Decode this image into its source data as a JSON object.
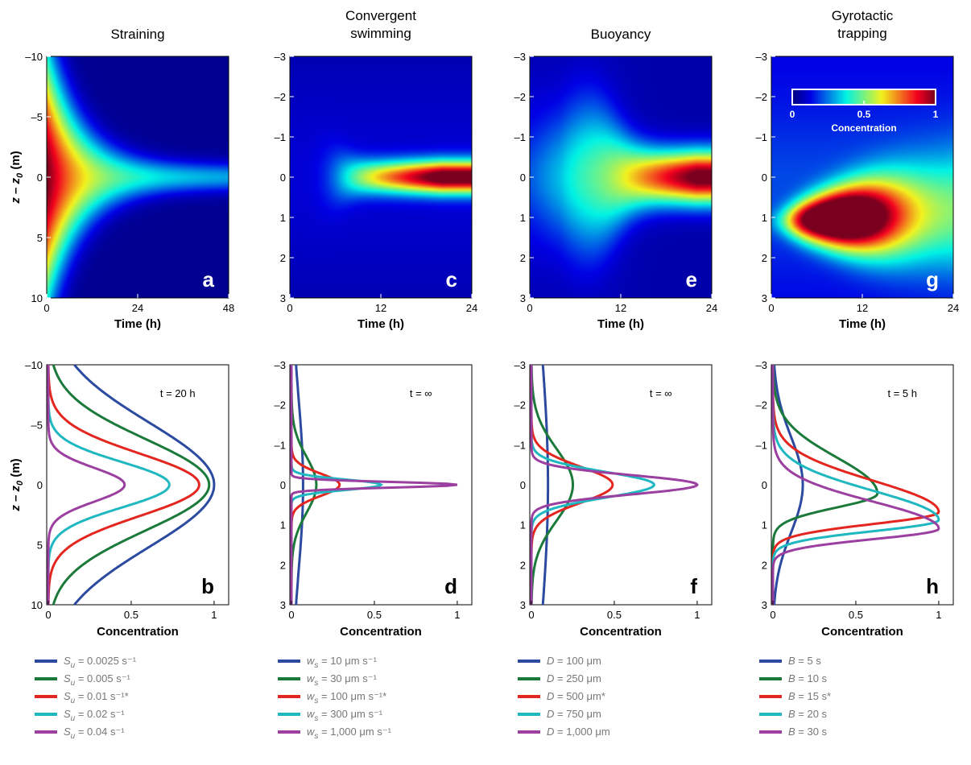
{
  "columns": [
    {
      "key": "straining",
      "title_lines": [
        "Straining"
      ],
      "heatmap_label": "a",
      "profile_label": "b",
      "time_max": 48,
      "time_ticks": [
        "0",
        "24",
        "48"
      ],
      "depth_range": [
        -10,
        10
      ],
      "depth_ticks": [
        "–10",
        "–5",
        "0",
        "5",
        "10"
      ],
      "annotation": "t = 20 h",
      "legend_param": "S",
      "legend_sub": "u",
      "legend_entries": [
        "S_u = 0.0025 s⁻¹",
        "S_u = 0.005 s⁻¹",
        "S_u = 0.01 s⁻¹*",
        "S_u = 0.02 s⁻¹",
        "S_u = 0.04 s⁻¹"
      ],
      "legend_values": [
        " = 0.0025 s⁻¹",
        " = 0.005 s⁻¹",
        " = 0.01 s⁻¹*",
        " = 0.02 s⁻¹",
        " = 0.04 s⁻¹"
      ]
    },
    {
      "key": "convergent",
      "title_lines": [
        "Convergent",
        "swimming"
      ],
      "heatmap_label": "c",
      "profile_label": "d",
      "time_max": 24,
      "time_ticks": [
        "0",
        "12",
        "24"
      ],
      "depth_range": [
        -3,
        3
      ],
      "depth_ticks": [
        "–3",
        "–2",
        "–1",
        "0",
        "1",
        "2",
        "3"
      ],
      "annotation": "t = ∞",
      "legend_param": "w",
      "legend_sub": "s",
      "legend_entries": [
        "w_s = 10 μm s⁻¹",
        "w_s = 30 μm s⁻¹",
        "w_s = 100 μm s⁻¹*",
        "w_s = 300 μm s⁻¹",
        "w_s = 1,000 μm s⁻¹"
      ],
      "legend_values": [
        " = 10 μm s⁻¹",
        " = 30 μm s⁻¹",
        " = 100 μm s⁻¹*",
        " = 300 μm s⁻¹",
        " = 1,000 μm s⁻¹"
      ]
    },
    {
      "key": "buoyancy",
      "title_lines": [
        "Buoyancy"
      ],
      "heatmap_label": "e",
      "profile_label": "f",
      "time_max": 24,
      "time_ticks": [
        "0",
        "12",
        "24"
      ],
      "depth_range": [
        -3,
        3
      ],
      "depth_ticks": [
        "–3",
        "–2",
        "–1",
        "0",
        "1",
        "2",
        "3"
      ],
      "annotation": "t = ∞",
      "legend_param": "D",
      "legend_sub": "",
      "legend_entries": [
        "D = 100 μm",
        "D = 250 μm",
        "D = 500 μm*",
        "D = 750 μm",
        "D = 1,000 μm"
      ],
      "legend_values": [
        " = 100 μm",
        " = 250 μm",
        " = 500 μm*",
        " = 750 μm",
        " = 1,000 μm"
      ]
    },
    {
      "key": "gyrotactic",
      "title_lines": [
        "Gyrotactic",
        "trapping"
      ],
      "heatmap_label": "g",
      "profile_label": "h",
      "time_max": 24,
      "time_ticks": [
        "0",
        "12",
        "24"
      ],
      "depth_range": [
        -3,
        3
      ],
      "depth_ticks": [
        "–3",
        "–2",
        "–1",
        "0",
        "1",
        "2",
        "3"
      ],
      "annotation": "t = 5 h",
      "legend_param": "B",
      "legend_sub": "",
      "legend_entries": [
        "B = 5 s",
        "B = 10 s",
        "B = 15 s*",
        "B = 20 s",
        "B = 30 s"
      ],
      "legend_values": [
        " = 5 s",
        " = 10 s",
        " = 15 s*",
        " = 20 s",
        " = 30 s"
      ]
    }
  ],
  "axes": {
    "y_label": "z – z0 (m)",
    "y_label_main": "z – z",
    "y_label_sub": "0",
    "y_label_unit": " (m)",
    "x_label_top": "Time (h)",
    "x_label_bottom": "Concentration",
    "conc_ticks": [
      "0",
      "0.5",
      "1"
    ]
  },
  "colorbar": {
    "label": "Concentration",
    "ticks": [
      "0",
      "0.5",
      "1"
    ]
  },
  "series_colors": [
    "#2b4aa0",
    "#1b7a3a",
    "#e3261f",
    "#1fb8c0",
    "#9b3fa0"
  ],
  "chart_data": [
    {
      "panel": "a",
      "type": "heatmap",
      "title": "Straining",
      "xlabel": "Time (h)",
      "ylabel": "z – z0 (m)",
      "xlim": [
        0,
        48
      ],
      "ylim": [
        -10,
        10
      ],
      "colorscale_range": [
        0,
        1
      ],
      "description_values": {
        "peak_depth": 0,
        "peak_time": 3,
        "converged_halfwidth": 0.8
      }
    },
    {
      "panel": "b",
      "type": "line",
      "title": "",
      "xlabel": "Concentration",
      "ylabel": "z – z0 (m)",
      "xlim": [
        0,
        1
      ],
      "ylim": [
        -10,
        10
      ],
      "annotation": "t = 20 h",
      "series": [
        {
          "name": "S_u = 0.0025 s⁻¹",
          "peak_z": 0,
          "peak_c": 1.0,
          "width": 5.2
        },
        {
          "name": "S_u = 0.005 s⁻¹",
          "peak_z": 0,
          "peak_c": 0.97,
          "width": 3.8
        },
        {
          "name": "S_u = 0.01 s⁻¹*",
          "peak_z": 0,
          "peak_c": 0.91,
          "width": 2.6
        },
        {
          "name": "S_u = 0.02 s⁻¹",
          "peak_z": 0,
          "peak_c": 0.73,
          "width": 1.9
        },
        {
          "name": "S_u = 0.04 s⁻¹",
          "peak_z": 0,
          "peak_c": 0.46,
          "width": 1.4
        }
      ]
    },
    {
      "panel": "c",
      "type": "heatmap",
      "title": "Convergent swimming",
      "xlabel": "Time (h)",
      "ylabel": "z – z0 (m)",
      "xlim": [
        0,
        24
      ],
      "ylim": [
        -3,
        3
      ],
      "colorscale_range": [
        0,
        1
      ],
      "description_values": {
        "peak_depth": 0,
        "onset_time": 4,
        "peak_time": 20
      }
    },
    {
      "panel": "d",
      "type": "line",
      "title": "",
      "xlabel": "Concentration",
      "ylabel": "z – z0 (m)",
      "xlim": [
        0,
        1
      ],
      "ylim": [
        -3,
        3
      ],
      "annotation": "t = ∞",
      "series": [
        {
          "name": "w_s = 10 μm s⁻¹",
          "peak_z": 0,
          "peak_c": 0.07,
          "width": 2.2
        },
        {
          "name": "w_s = 30 μm s⁻¹",
          "peak_z": 0,
          "peak_c": 0.15,
          "width": 0.7
        },
        {
          "name": "w_s = 100 μm s⁻¹*",
          "peak_z": 0,
          "peak_c": 0.29,
          "width": 0.28
        },
        {
          "name": "w_s = 300 μm s⁻¹",
          "peak_z": 0,
          "peak_c": 0.54,
          "width": 0.13
        },
        {
          "name": "w_s = 1,000 μm s⁻¹",
          "peak_z": 0,
          "peak_c": 1.0,
          "width": 0.07
        }
      ]
    },
    {
      "panel": "e",
      "type": "heatmap",
      "title": "Buoyancy",
      "xlabel": "Time (h)",
      "ylabel": "z – z0 (m)",
      "xlim": [
        0,
        24
      ],
      "ylim": [
        -3,
        3
      ],
      "colorscale_range": [
        0,
        1
      ],
      "description_values": {
        "peak_depth": 0,
        "onset_time": 7,
        "peak_time": 22
      }
    },
    {
      "panel": "f",
      "type": "line",
      "title": "",
      "xlabel": "Concentration",
      "ylabel": "z – z0 (m)",
      "xlim": [
        0,
        1
      ],
      "ylim": [
        -3,
        3
      ],
      "annotation": "t = ∞",
      "series": [
        {
          "name": "D = 100 μm",
          "peak_z": 0,
          "peak_c": 0.1,
          "width": 3.5
        },
        {
          "name": "D = 250 μm",
          "peak_z": 0,
          "peak_c": 0.25,
          "width": 0.9
        },
        {
          "name": "D = 500 μm*",
          "peak_z": 0,
          "peak_c": 0.49,
          "width": 0.45
        },
        {
          "name": "D = 750 μm",
          "peak_z": 0,
          "peak_c": 0.74,
          "width": 0.32
        },
        {
          "name": "D = 1,000 μm",
          "peak_z": 0,
          "peak_c": 1.0,
          "width": 0.24
        }
      ]
    },
    {
      "panel": "g",
      "type": "heatmap",
      "title": "Gyrotactic trapping",
      "xlabel": "Time (h)",
      "ylabel": "z – z0 (m)",
      "xlim": [
        0,
        24
      ],
      "ylim": [
        -3,
        3
      ],
      "colorscale_range": [
        0,
        1
      ],
      "description_values": {
        "peak_depth": 1.1,
        "peak_time": 10
      }
    },
    {
      "panel": "h",
      "type": "line",
      "title": "",
      "xlabel": "Concentration",
      "ylabel": "z – z0 (m)",
      "xlim": [
        0,
        1
      ],
      "ylim": [
        -3,
        3
      ],
      "annotation": "t = 5 h",
      "series": [
        {
          "name": "B = 5 s",
          "peak_z": 0,
          "peak_c": 0.18,
          "width": 1.2
        },
        {
          "name": "B = 10 s",
          "peak_z": 0.22,
          "peak_c": 0.63,
          "width": 0.35
        },
        {
          "name": "B = 15 s*",
          "peak_z": 0.68,
          "peak_c": 1.0,
          "width": 0.3
        },
        {
          "name": "B = 20 s",
          "peak_z": 0.88,
          "peak_c": 1.0,
          "width": 0.28
        },
        {
          "name": "B = 30 s",
          "peak_z": 1.1,
          "peak_c": 1.0,
          "width": 0.26
        }
      ]
    }
  ]
}
